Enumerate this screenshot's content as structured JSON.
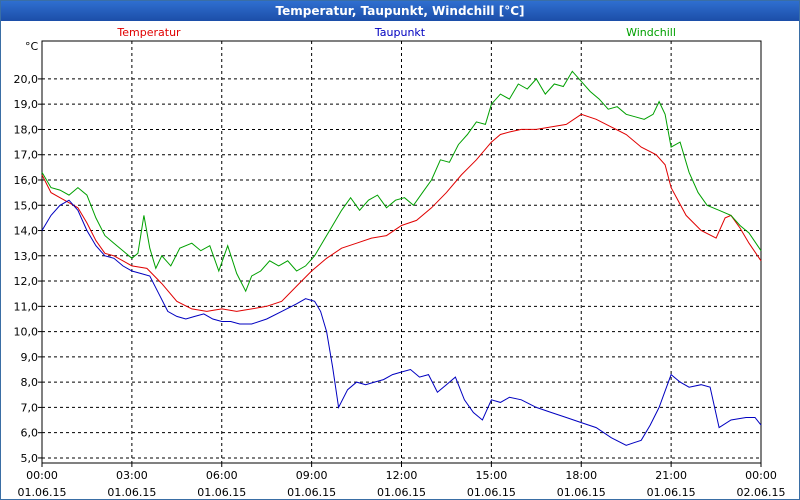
{
  "window": {
    "title": "Temperatur, Taupunkt, Windchill [°C]"
  },
  "chart_data": {
    "type": "line",
    "title": "Temperatur, Taupunkt, Windchill [°C]",
    "ylabel": "°C",
    "ylim": [
      4.8,
      21.5
    ],
    "yticks": [
      "5,0",
      "6,0",
      "7,0",
      "8,0",
      "9,0",
      "10,0",
      "11,0",
      "12,0",
      "13,0",
      "14,0",
      "15,0",
      "16,0",
      "17,0",
      "18,0",
      "19,0",
      "20,0"
    ],
    "xlim": [
      0,
      24
    ],
    "xticks": [
      {
        "time": "00:00",
        "date": "01.06.15"
      },
      {
        "time": "03:00",
        "date": "01.06.15"
      },
      {
        "time": "06:00",
        "date": "01.06.15"
      },
      {
        "time": "09:00",
        "date": "01.06.15"
      },
      {
        "time": "12:00",
        "date": "01.06.15"
      },
      {
        "time": "15:00",
        "date": "01.06.15"
      },
      {
        "time": "18:00",
        "date": "01.06.15"
      },
      {
        "time": "21:00",
        "date": "01.06.15"
      },
      {
        "time": "00:00",
        "date": "02.06.15"
      }
    ],
    "grid": true,
    "legend_position": "top",
    "series": [
      {
        "name": "Temperatur",
        "color": "#e00000",
        "points": [
          [
            0,
            16.2
          ],
          [
            0.3,
            15.5
          ],
          [
            0.6,
            15.3
          ],
          [
            0.9,
            15.1
          ],
          [
            1.2,
            14.9
          ],
          [
            1.5,
            14.3
          ],
          [
            1.8,
            13.6
          ],
          [
            2.1,
            13.1
          ],
          [
            2.4,
            13.0
          ],
          [
            2.7,
            12.8
          ],
          [
            3.0,
            12.6
          ],
          [
            3.5,
            12.5
          ],
          [
            4.0,
            11.9
          ],
          [
            4.5,
            11.2
          ],
          [
            5.0,
            10.9
          ],
          [
            5.5,
            10.8
          ],
          [
            6.0,
            10.9
          ],
          [
            6.5,
            10.8
          ],
          [
            7.0,
            10.9
          ],
          [
            7.5,
            11.0
          ],
          [
            8.0,
            11.2
          ],
          [
            8.5,
            11.8
          ],
          [
            9.0,
            12.4
          ],
          [
            9.5,
            12.9
          ],
          [
            10.0,
            13.3
          ],
          [
            10.5,
            13.5
          ],
          [
            11.0,
            13.7
          ],
          [
            11.5,
            13.8
          ],
          [
            12.0,
            14.2
          ],
          [
            12.5,
            14.4
          ],
          [
            13.0,
            14.9
          ],
          [
            13.5,
            15.5
          ],
          [
            14.0,
            16.2
          ],
          [
            14.5,
            16.8
          ],
          [
            15.0,
            17.5
          ],
          [
            15.3,
            17.8
          ],
          [
            15.6,
            17.9
          ],
          [
            16.0,
            18.0
          ],
          [
            16.5,
            18.0
          ],
          [
            17.0,
            18.1
          ],
          [
            17.5,
            18.2
          ],
          [
            18.0,
            18.6
          ],
          [
            18.5,
            18.4
          ],
          [
            19.0,
            18.1
          ],
          [
            19.5,
            17.8
          ],
          [
            20.0,
            17.3
          ],
          [
            20.5,
            17.0
          ],
          [
            20.8,
            16.6
          ],
          [
            21.0,
            15.7
          ],
          [
            21.5,
            14.6
          ],
          [
            22.0,
            14.0
          ],
          [
            22.5,
            13.7
          ],
          [
            22.8,
            14.5
          ],
          [
            23.0,
            14.6
          ],
          [
            23.3,
            14.1
          ],
          [
            23.6,
            13.5
          ],
          [
            24.0,
            12.8
          ]
        ]
      },
      {
        "name": "Taupunkt",
        "color": "#0000c0",
        "points": [
          [
            0,
            14.0
          ],
          [
            0.3,
            14.6
          ],
          [
            0.6,
            15.0
          ],
          [
            0.9,
            15.2
          ],
          [
            1.2,
            14.8
          ],
          [
            1.5,
            14.0
          ],
          [
            1.8,
            13.4
          ],
          [
            2.1,
            13.0
          ],
          [
            2.4,
            12.9
          ],
          [
            2.7,
            12.6
          ],
          [
            3.0,
            12.4
          ],
          [
            3.3,
            12.3
          ],
          [
            3.6,
            12.2
          ],
          [
            3.9,
            11.5
          ],
          [
            4.2,
            10.8
          ],
          [
            4.5,
            10.6
          ],
          [
            4.8,
            10.5
          ],
          [
            5.1,
            10.6
          ],
          [
            5.4,
            10.7
          ],
          [
            5.7,
            10.5
          ],
          [
            6.0,
            10.4
          ],
          [
            6.3,
            10.4
          ],
          [
            6.6,
            10.3
          ],
          [
            7.0,
            10.3
          ],
          [
            7.5,
            10.5
          ],
          [
            8.0,
            10.8
          ],
          [
            8.5,
            11.1
          ],
          [
            8.8,
            11.3
          ],
          [
            9.1,
            11.2
          ],
          [
            9.3,
            10.8
          ],
          [
            9.5,
            10.0
          ],
          [
            9.7,
            8.6
          ],
          [
            9.9,
            7.0
          ],
          [
            10.2,
            7.7
          ],
          [
            10.5,
            8.0
          ],
          [
            10.8,
            7.9
          ],
          [
            11.1,
            8.0
          ],
          [
            11.4,
            8.1
          ],
          [
            11.7,
            8.3
          ],
          [
            12.0,
            8.4
          ],
          [
            12.3,
            8.5
          ],
          [
            12.6,
            8.2
          ],
          [
            12.9,
            8.3
          ],
          [
            13.2,
            7.6
          ],
          [
            13.5,
            7.9
          ],
          [
            13.8,
            8.2
          ],
          [
            14.1,
            7.3
          ],
          [
            14.4,
            6.8
          ],
          [
            14.7,
            6.5
          ],
          [
            15.0,
            7.3
          ],
          [
            15.3,
            7.2
          ],
          [
            15.6,
            7.4
          ],
          [
            16.0,
            7.3
          ],
          [
            16.5,
            7.0
          ],
          [
            17.0,
            6.8
          ],
          [
            17.5,
            6.6
          ],
          [
            18.0,
            6.4
          ],
          [
            18.5,
            6.2
          ],
          [
            19.0,
            5.8
          ],
          [
            19.5,
            5.5
          ],
          [
            20.0,
            5.7
          ],
          [
            20.3,
            6.3
          ],
          [
            20.6,
            7.0
          ],
          [
            21.0,
            8.3
          ],
          [
            21.3,
            8.0
          ],
          [
            21.6,
            7.8
          ],
          [
            22.0,
            7.9
          ],
          [
            22.3,
            7.8
          ],
          [
            22.6,
            6.2
          ],
          [
            23.0,
            6.5
          ],
          [
            23.5,
            6.6
          ],
          [
            23.8,
            6.6
          ],
          [
            24.0,
            6.3
          ]
        ]
      },
      {
        "name": "Windchill",
        "color": "#00a000",
        "points": [
          [
            0,
            16.3
          ],
          [
            0.3,
            15.7
          ],
          [
            0.6,
            15.6
          ],
          [
            0.9,
            15.4
          ],
          [
            1.2,
            15.7
          ],
          [
            1.5,
            15.4
          ],
          [
            1.8,
            14.5
          ],
          [
            2.1,
            13.8
          ],
          [
            2.4,
            13.5
          ],
          [
            2.7,
            13.2
          ],
          [
            3.0,
            12.9
          ],
          [
            3.2,
            13.1
          ],
          [
            3.4,
            14.6
          ],
          [
            3.6,
            13.3
          ],
          [
            3.8,
            12.5
          ],
          [
            4.0,
            13.0
          ],
          [
            4.3,
            12.6
          ],
          [
            4.6,
            13.3
          ],
          [
            5.0,
            13.5
          ],
          [
            5.3,
            13.2
          ],
          [
            5.6,
            13.4
          ],
          [
            5.9,
            12.4
          ],
          [
            6.2,
            13.4
          ],
          [
            6.5,
            12.3
          ],
          [
            6.8,
            11.6
          ],
          [
            7.0,
            12.2
          ],
          [
            7.3,
            12.4
          ],
          [
            7.6,
            12.8
          ],
          [
            7.9,
            12.6
          ],
          [
            8.2,
            12.8
          ],
          [
            8.5,
            12.4
          ],
          [
            8.8,
            12.6
          ],
          [
            9.1,
            13.0
          ],
          [
            9.4,
            13.6
          ],
          [
            9.7,
            14.2
          ],
          [
            10.0,
            14.8
          ],
          [
            10.3,
            15.3
          ],
          [
            10.6,
            14.8
          ],
          [
            10.9,
            15.2
          ],
          [
            11.2,
            15.4
          ],
          [
            11.5,
            14.9
          ],
          [
            11.8,
            15.2
          ],
          [
            12.1,
            15.3
          ],
          [
            12.4,
            15.0
          ],
          [
            12.7,
            15.5
          ],
          [
            13.0,
            16.0
          ],
          [
            13.3,
            16.8
          ],
          [
            13.6,
            16.7
          ],
          [
            13.9,
            17.4
          ],
          [
            14.2,
            17.8
          ],
          [
            14.5,
            18.3
          ],
          [
            14.8,
            18.2
          ],
          [
            15.0,
            19.0
          ],
          [
            15.3,
            19.4
          ],
          [
            15.6,
            19.2
          ],
          [
            15.9,
            19.8
          ],
          [
            16.2,
            19.6
          ],
          [
            16.5,
            20.0
          ],
          [
            16.8,
            19.4
          ],
          [
            17.1,
            19.8
          ],
          [
            17.4,
            19.7
          ],
          [
            17.7,
            20.3
          ],
          [
            18.0,
            19.9
          ],
          [
            18.3,
            19.5
          ],
          [
            18.6,
            19.2
          ],
          [
            18.9,
            18.8
          ],
          [
            19.2,
            18.9
          ],
          [
            19.5,
            18.6
          ],
          [
            19.8,
            18.5
          ],
          [
            20.1,
            18.4
          ],
          [
            20.4,
            18.6
          ],
          [
            20.6,
            19.1
          ],
          [
            20.8,
            18.6
          ],
          [
            21.0,
            17.3
          ],
          [
            21.3,
            17.5
          ],
          [
            21.6,
            16.3
          ],
          [
            21.9,
            15.5
          ],
          [
            22.2,
            15.0
          ],
          [
            22.6,
            14.8
          ],
          [
            23.0,
            14.6
          ],
          [
            23.3,
            14.2
          ],
          [
            23.6,
            13.9
          ],
          [
            24.0,
            13.2
          ]
        ]
      }
    ]
  }
}
